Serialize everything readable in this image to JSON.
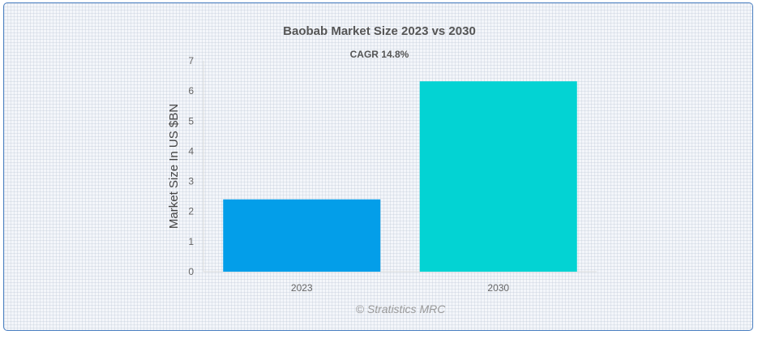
{
  "chart_data": {
    "type": "bar",
    "title": "Baobab Market Size 2023 vs 2030",
    "subtitle": "CAGR 14.8%",
    "categories": [
      "2023",
      "2030"
    ],
    "values": [
      2.4,
      6.32
    ],
    "colors": [
      "#039ee9",
      "#03d3d3"
    ],
    "xlabel": "",
    "ylabel": "Market Size In US $BN",
    "ylim": [
      0,
      7
    ],
    "yticks": [
      0,
      1,
      2,
      3,
      4,
      5,
      6,
      7
    ],
    "grid": false,
    "legend": "none"
  },
  "credit": "© Stratistics MRC"
}
